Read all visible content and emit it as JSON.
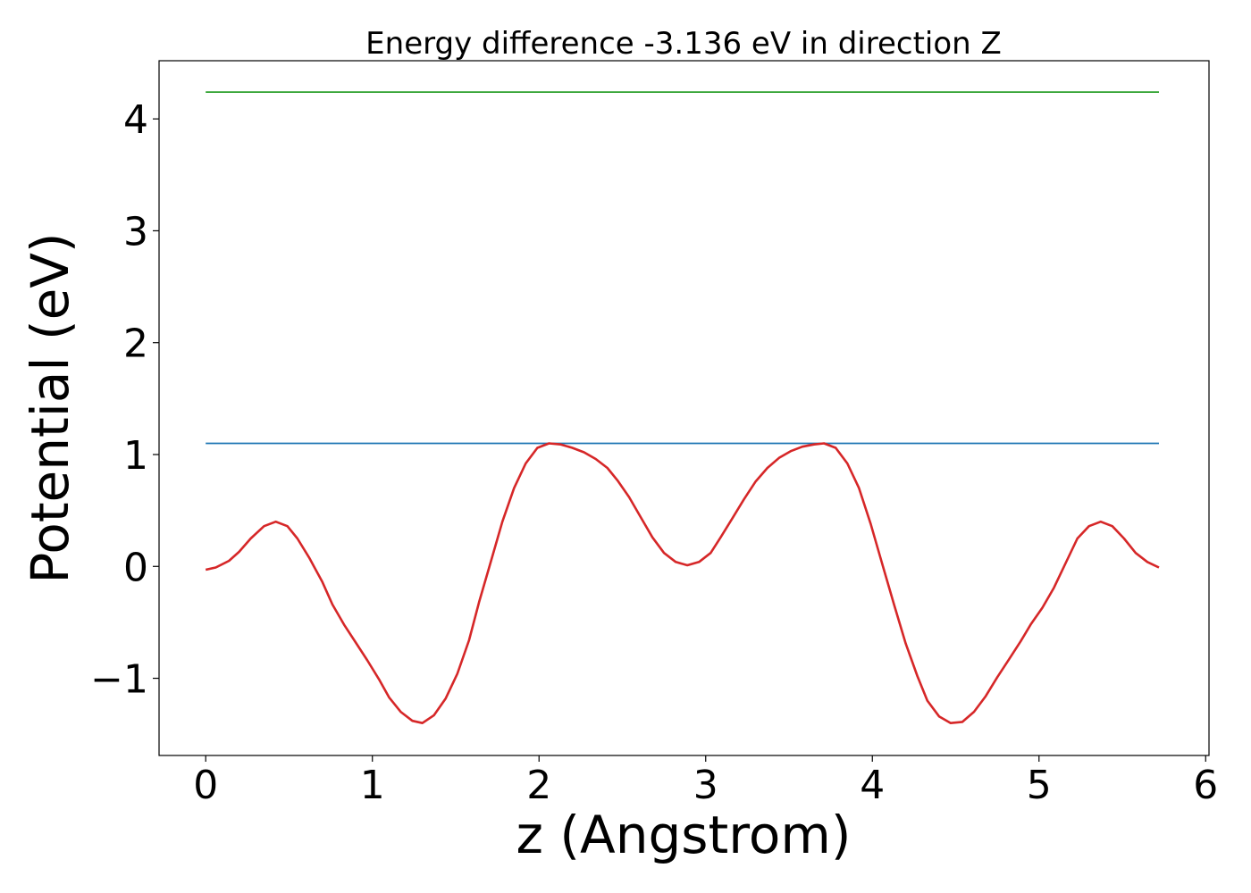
{
  "chart_data": {
    "type": "line",
    "title": "Energy difference -3.136 eV in direction Z",
    "xlabel": "z (Angstrom)",
    "ylabel": "Potential (eV)",
    "xlim": [
      -0.28,
      6.02
    ],
    "ylim": [
      -1.69,
      4.52
    ],
    "xticks": [
      0,
      1,
      2,
      3,
      4,
      5,
      6
    ],
    "xtick_labels": [
      "0",
      "1",
      "2",
      "3",
      "4",
      "5",
      "6"
    ],
    "yticks": [
      -1,
      0,
      1,
      2,
      3,
      4
    ],
    "ytick_labels": [
      "−1",
      "0",
      "1",
      "2",
      "3",
      "4"
    ],
    "grid": false,
    "series": [
      {
        "color": "#2ca02c",
        "x": [
          0,
          5.72
        ],
        "y": [
          4.24,
          4.24
        ]
      },
      {
        "color": "#1f77b4",
        "x": [
          0,
          5.72
        ],
        "y": [
          1.1,
          1.1
        ]
      },
      {
        "color": "#d62728",
        "x": [
          0,
          0.06,
          0.14,
          0.2,
          0.27,
          0.35,
          0.42,
          0.49,
          0.55,
          0.62,
          0.7,
          0.76,
          0.83,
          0.9,
          0.97,
          1.04,
          1.1,
          1.17,
          1.24,
          1.3,
          1.37,
          1.44,
          1.51,
          1.58,
          1.64,
          1.71,
          1.78,
          1.85,
          1.92,
          1.99,
          2.06,
          2.13,
          2.2,
          2.27,
          2.34,
          2.41,
          2.47,
          2.54,
          2.61,
          2.68,
          2.75,
          2.82,
          2.89,
          2.96,
          3.03,
          3.09,
          3.16,
          3.23,
          3.3,
          3.37,
          3.44,
          3.51,
          3.58,
          3.65,
          3.71,
          3.78,
          3.85,
          3.92,
          3.99,
          4.06,
          4.13,
          4.2,
          4.27,
          4.33,
          4.4,
          4.47,
          4.54,
          4.61,
          4.68,
          4.75,
          4.82,
          4.89,
          4.95,
          5.02,
          5.09,
          5.16,
          5.23,
          5.3,
          5.37,
          5.44,
          5.51,
          5.58,
          5.65,
          5.72
        ],
        "y": [
          -0.03,
          -0.01,
          0.05,
          0.13,
          0.25,
          0.36,
          0.4,
          0.36,
          0.25,
          0.08,
          -0.14,
          -0.34,
          -0.52,
          -0.68,
          -0.84,
          -1.01,
          -1.17,
          -1.3,
          -1.38,
          -1.4,
          -1.33,
          -1.18,
          -0.96,
          -0.66,
          -0.32,
          0.04,
          0.4,
          0.7,
          0.92,
          1.06,
          1.1,
          1.09,
          1.06,
          1.02,
          0.96,
          0.88,
          0.77,
          0.62,
          0.44,
          0.26,
          0.12,
          0.04,
          0.01,
          0.04,
          0.12,
          0.26,
          0.43,
          0.6,
          0.76,
          0.88,
          0.97,
          1.03,
          1.07,
          1.09,
          1.1,
          1.06,
          0.92,
          0.7,
          0.38,
          0.02,
          -0.34,
          -0.69,
          -0.98,
          -1.2,
          -1.34,
          -1.4,
          -1.39,
          -1.3,
          -1.16,
          -0.99,
          -0.83,
          -0.67,
          -0.52,
          -0.37,
          -0.19,
          0.03,
          0.25,
          0.36,
          0.4,
          0.36,
          0.25,
          0.12,
          0.04,
          -0.01
        ]
      }
    ]
  }
}
